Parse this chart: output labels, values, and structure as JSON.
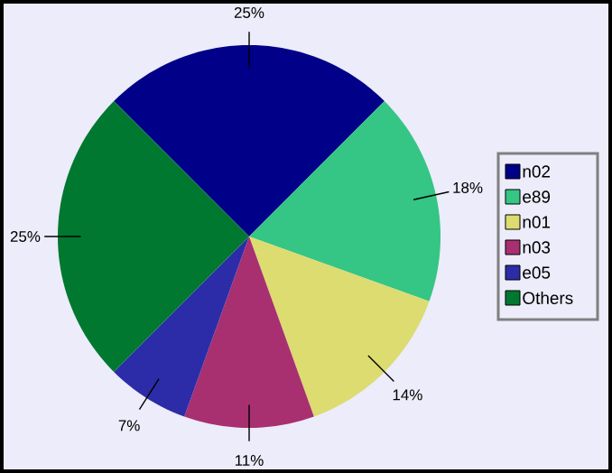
{
  "chart_data": {
    "type": "pie",
    "categories": [
      "n02",
      "e89",
      "n01",
      "n03",
      "e05",
      "Others"
    ],
    "values": [
      25,
      18,
      14,
      11,
      7,
      25
    ],
    "colors": [
      "#000088",
      "#35c585",
      "#dcdc70",
      "#a83070",
      "#2c2ca8",
      "#007830"
    ],
    "value_labels": [
      "25%",
      "18%",
      "14%",
      "11%",
      "7%",
      "25%"
    ],
    "legend": "right"
  }
}
